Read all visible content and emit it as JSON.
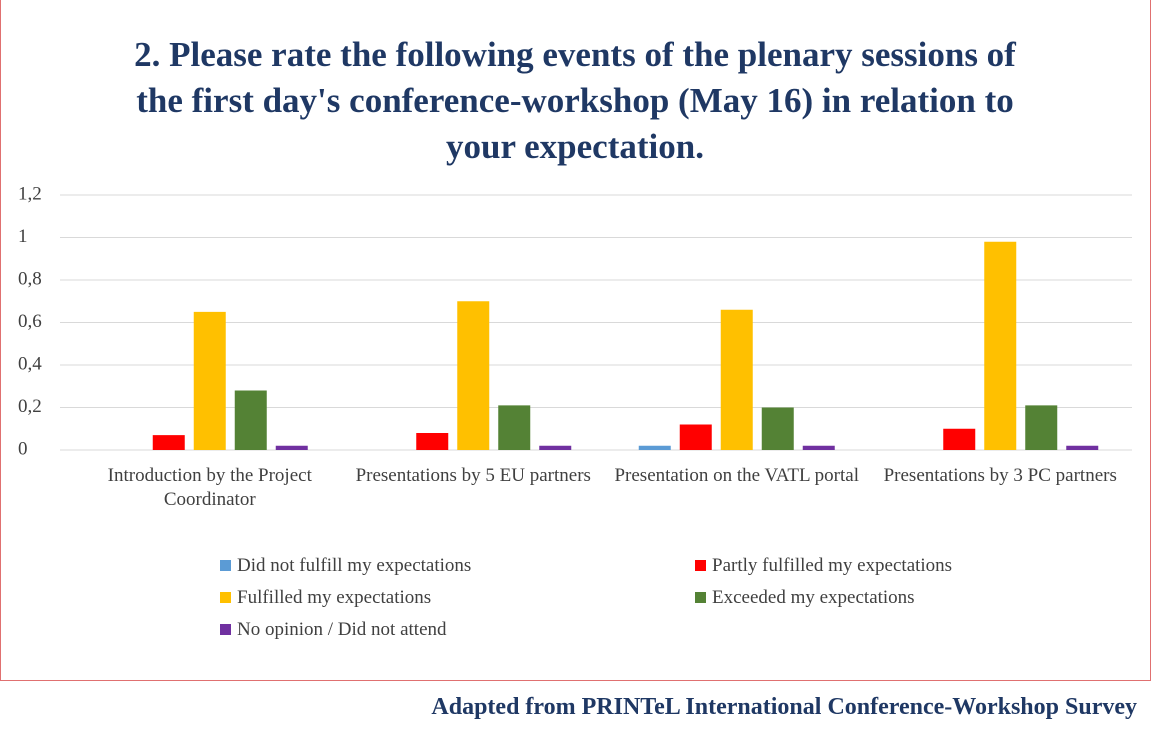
{
  "chart_data": {
    "type": "bar",
    "title": "2. Please rate the following events of the plenary sessions of the first day's conference-workshop (May 16) in relation to your expectation.",
    "categories": [
      "Introduction by the Project Coordinator",
      "Presentations by 5 EU partners",
      "Presentation on the VATL portal",
      "Presentations by 3 PC partners"
    ],
    "series": [
      {
        "name": "Did not fulfill my expectations",
        "color": "#5b9bd5",
        "values": [
          0,
          0,
          0.02,
          0
        ]
      },
      {
        "name": "Partly fulfilled my expectations",
        "color": "#ff0000",
        "values": [
          0.07,
          0.08,
          0.12,
          0.1
        ]
      },
      {
        "name": "Fulfilled my expectations",
        "color": "#ffc000",
        "values": [
          0.65,
          0.7,
          0.66,
          0.98
        ]
      },
      {
        "name": "Exceeded my expectations",
        "color": "#548235",
        "values": [
          0.28,
          0.21,
          0.2,
          0.21
        ]
      },
      {
        "name": "No opinion / Did not attend",
        "color": "#7030a0",
        "values": [
          0.02,
          0.02,
          0.02,
          0.02
        ]
      }
    ],
    "ylim": [
      0,
      1.2
    ],
    "yticks": [
      0,
      {
        "value": 0.2,
        "label": "0,2"
      },
      {
        "value": 0.4,
        "label": "0,4"
      },
      {
        "value": 0.6,
        "label": "0,6"
      },
      {
        "value": 0.8,
        "label": "0,8"
      },
      1,
      {
        "value": 1.2,
        "label": "1,2"
      }
    ],
    "grid": true,
    "legend": "bottom",
    "source": "Adapted from PRINTeL International Conference-Workshop Survey"
  }
}
